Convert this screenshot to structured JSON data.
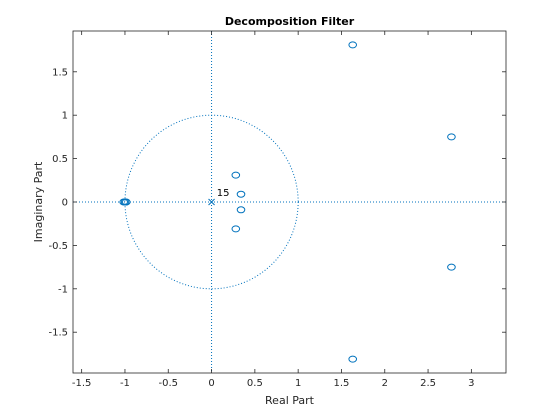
{
  "chart_data": {
    "type": "scatter",
    "title": "Decomposition Filter",
    "xlabel": "Real Part",
    "ylabel": "Imaginary Part",
    "xlim": [
      -1.6,
      3.4
    ],
    "ylim": [
      -1.97,
      1.97
    ],
    "xticks": [
      -1.5,
      -1,
      -0.5,
      0,
      0.5,
      1,
      1.5,
      2,
      2.5,
      3
    ],
    "xtick_labels": [
      "-1.5",
      "-1",
      "-0.5",
      "0",
      "0.5",
      "1",
      "1.5",
      "2",
      "2.5",
      "3"
    ],
    "yticks": [
      -1.5,
      -1,
      -0.5,
      0,
      0.5,
      1,
      1.5
    ],
    "ytick_labels": [
      "-1.5",
      "-1",
      "-0.5",
      "0",
      "0.5",
      "1",
      "1.5"
    ],
    "grid": false,
    "unit_circle": true,
    "color": "#0072bd",
    "zeros": [
      {
        "x": 1.63,
        "y": 1.81
      },
      {
        "x": 1.63,
        "y": -1.81
      },
      {
        "x": 2.77,
        "y": 0.75
      },
      {
        "x": 2.77,
        "y": -0.75
      },
      {
        "x": 0.28,
        "y": 0.31
      },
      {
        "x": 0.28,
        "y": -0.31
      },
      {
        "x": 0.34,
        "y": 0.09
      },
      {
        "x": 0.34,
        "y": -0.09
      },
      {
        "x": -1.0,
        "y": 0.0
      },
      {
        "x": -0.985,
        "y": 0.0
      },
      {
        "x": -1.015,
        "y": 0.0
      }
    ],
    "poles": [
      {
        "x": 0,
        "y": 0
      }
    ],
    "annotations": [
      {
        "text": "15",
        "x": 0.06,
        "y": 0.07
      }
    ]
  }
}
